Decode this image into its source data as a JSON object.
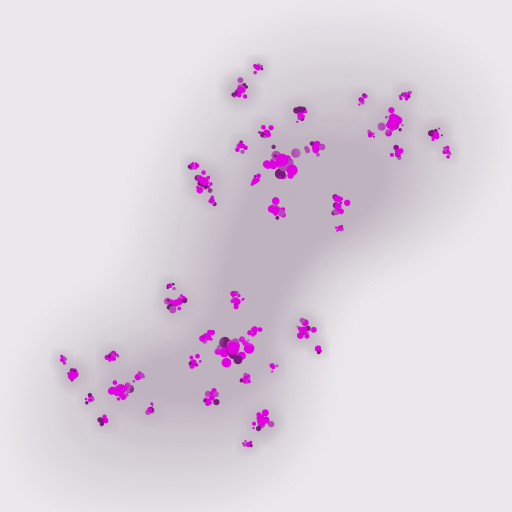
{
  "image": {
    "subject": "julia-set-fractal",
    "palette": {
      "outer_background": "#ebe8eb",
      "band_1": "#e3dfe4",
      "band_2": "#dcd7dd",
      "band_3": "#d5cfd6",
      "band_4": "#cec6cf",
      "band_5": "#c7bdc8",
      "band_6": "#bfb3c0",
      "core_magenta": "#e000e0",
      "core_dark": "#7a1a7a",
      "core_mid": "#b44bb4"
    }
  }
}
